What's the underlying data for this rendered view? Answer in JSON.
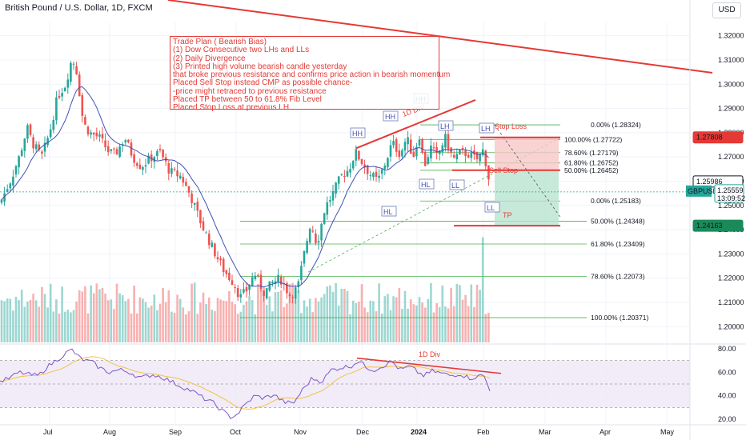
{
  "header": {
    "title": "British Pound / U.S. Dollar, 1D, FXCM",
    "currency_button": "USD"
  },
  "colors": {
    "up": "#26a69a",
    "down": "#ef5350",
    "ma": "#3f51b5",
    "rsi": "#7e57c2",
    "rsi_ma": "#f5c242",
    "annotation": "#e53935",
    "fib": "#4caf50"
  },
  "trade_plan": [
    "Trade Plan ( Bearish Bias)",
    "(1) Dow Consecutive two LHs and LLs",
    "(2) Daily Divergence",
    "(3) Printed high volume bearish candle yesterday",
    "that broke previous resistance and confirms price action in bearish momentum",
    "Placed Sell Stop instead CMP as possible chance-",
    "-price might retraced to previous resistance",
    "Placed TP between 50 to 61.8% Fib Level",
    "Placed Stop Loss at previous LH"
  ],
  "chart_data": {
    "type": "candlestick",
    "symbol": "GBPUSD",
    "timeframe": "1D",
    "x_ticks": [
      "Jul",
      "Aug",
      "Sep",
      "Oct",
      "Nov",
      "Dec",
      "2024",
      "Feb",
      "Mar",
      "Apr",
      "May"
    ],
    "price_ticks": [
      "1.32000",
      "1.31000",
      "1.30000",
      "1.29000",
      "1.28000",
      "1.27000",
      "1.26000",
      "1.25000",
      "1.24000",
      "1.23000",
      "1.22000",
      "1.21000",
      "1.20000"
    ],
    "price_range": [
      1.1935,
      1.3255
    ],
    "price_path": [
      [
        0,
        1.251
      ],
      [
        14,
        1.261
      ],
      [
        24,
        1.27
      ],
      [
        34,
        1.282
      ],
      [
        40,
        1.276
      ],
      [
        52,
        1.27
      ],
      [
        62,
        1.28
      ],
      [
        72,
        1.295
      ],
      [
        82,
        1.3
      ],
      [
        90,
        1.311
      ],
      [
        96,
        1.305
      ],
      [
        104,
        1.284
      ],
      [
        112,
        1.28
      ],
      [
        124,
        1.278
      ],
      [
        136,
        1.272
      ],
      [
        144,
        1.271
      ],
      [
        156,
        1.278
      ],
      [
        166,
        1.27
      ],
      [
        176,
        1.266
      ],
      [
        190,
        1.27
      ],
      [
        200,
        1.272
      ],
      [
        212,
        1.264
      ],
      [
        226,
        1.262
      ],
      [
        238,
        1.254
      ],
      [
        252,
        1.242
      ],
      [
        266,
        1.232
      ],
      [
        280,
        1.223
      ],
      [
        292,
        1.218
      ],
      [
        300,
        1.212
      ],
      [
        308,
        1.215
      ],
      [
        318,
        1.222
      ],
      [
        330,
        1.214
      ],
      [
        340,
        1.218
      ],
      [
        350,
        1.22
      ],
      [
        362,
        1.213
      ],
      [
        372,
        1.216
      ],
      [
        380,
        1.23
      ],
      [
        388,
        1.243
      ],
      [
        396,
        1.234
      ],
      [
        406,
        1.249
      ],
      [
        416,
        1.255
      ],
      [
        426,
        1.262
      ],
      [
        436,
        1.265
      ],
      [
        444,
        1.272
      ],
      [
        452,
        1.268
      ],
      [
        462,
        1.263
      ],
      [
        472,
        1.26
      ],
      [
        482,
        1.268
      ],
      [
        490,
        1.276
      ],
      [
        500,
        1.271
      ],
      [
        508,
        1.278
      ],
      [
        516,
        1.27
      ],
      [
        524,
        1.279
      ],
      [
        530,
        1.266
      ],
      [
        538,
        1.274
      ],
      [
        546,
        1.27
      ],
      [
        556,
        1.278
      ],
      [
        566,
        1.269
      ],
      [
        576,
        1.272
      ],
      [
        586,
        1.271
      ],
      [
        596,
        1.269
      ],
      [
        604,
        1.273
      ],
      [
        610,
        1.262
      ],
      [
        614,
        1.2556
      ]
    ],
    "last_price": "1.25559",
    "last_price_countdown": "13:09:52",
    "labels_on_axis": [
      "1.27808",
      "1.25986",
      "1.24163"
    ],
    "fib_upper": [
      {
        "label": "0.00% (1.28324)",
        "price": 1.28324
      },
      {
        "label": "100.00% (1.27722)",
        "price": 1.27722
      },
      {
        "label": "78.60% (1.27179)",
        "price": 1.27179
      },
      {
        "label": "61.80% (1.26752)",
        "price": 1.26752
      },
      {
        "label": "50.00% (1.26452)",
        "price": 1.26452
      },
      {
        "label": "0.00% (1.25183)",
        "price": 1.25183
      }
    ],
    "fib_lower": [
      {
        "label": "50.00% (1.24348)",
        "price": 1.24348
      },
      {
        "label": "61.80% (1.23409)",
        "price": 1.23409
      },
      {
        "label": "78.60% (1.22073)",
        "price": 1.22073
      },
      {
        "label": "100.00% (1.20371)",
        "price": 1.20371
      }
    ],
    "stop_loss_price": 1.27808,
    "sell_stop_price": 1.26452,
    "tp_price": 1.24163,
    "annotations": [
      "HH",
      "HH",
      "HH",
      "LH",
      "LH",
      "HL",
      "HL",
      "LL",
      "LL",
      "1D DIV",
      "Stop Loss",
      "Sell Stop",
      "TP"
    ],
    "divergence_label": "1D Div",
    "rsi": {
      "ticks": [
        "80.00",
        "60.00",
        "40.00",
        "20.00"
      ],
      "range": [
        16,
        84
      ],
      "path": [
        [
          0,
          52
        ],
        [
          12,
          55
        ],
        [
          24,
          60
        ],
        [
          36,
          58
        ],
        [
          48,
          57
        ],
        [
          58,
          64
        ],
        [
          66,
          68
        ],
        [
          76,
          73
        ],
        [
          84,
          77
        ],
        [
          90,
          79
        ],
        [
          98,
          73
        ],
        [
          106,
          70
        ],
        [
          114,
          69
        ],
        [
          124,
          64
        ],
        [
          136,
          60
        ],
        [
          150,
          62
        ],
        [
          162,
          60
        ],
        [
          176,
          55
        ],
        [
          190,
          58
        ],
        [
          202,
          56
        ],
        [
          214,
          52
        ],
        [
          226,
          48
        ],
        [
          240,
          44
        ],
        [
          254,
          38
        ],
        [
          266,
          34
        ],
        [
          280,
          26
        ],
        [
          288,
          22
        ],
        [
          296,
          24
        ],
        [
          306,
          32
        ],
        [
          318,
          40
        ],
        [
          330,
          38
        ],
        [
          342,
          41
        ],
        [
          354,
          35
        ],
        [
          366,
          33
        ],
        [
          378,
          45
        ],
        [
          390,
          55
        ],
        [
          402,
          52
        ],
        [
          414,
          62
        ],
        [
          426,
          64
        ],
        [
          438,
          65
        ],
        [
          448,
          70
        ],
        [
          458,
          64
        ],
        [
          468,
          62
        ],
        [
          480,
          66
        ],
        [
          490,
          69
        ],
        [
          500,
          62
        ],
        [
          512,
          65
        ],
        [
          522,
          60
        ],
        [
          530,
          57
        ],
        [
          540,
          61
        ],
        [
          552,
          59
        ],
        [
          564,
          57
        ],
        [
          574,
          59
        ],
        [
          586,
          55
        ],
        [
          596,
          56
        ],
        [
          604,
          58
        ],
        [
          610,
          48
        ],
        [
          614,
          43
        ]
      ]
    }
  }
}
